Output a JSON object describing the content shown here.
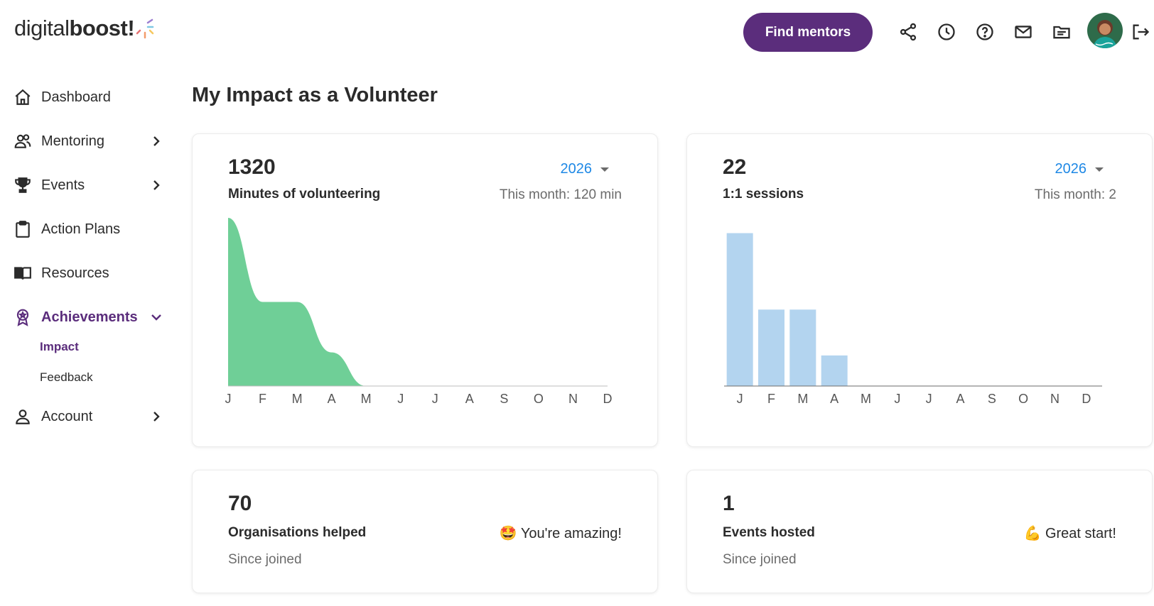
{
  "header": {
    "logo": {
      "part1": "digital",
      "part2": "boost",
      "mark": "!"
    },
    "find_mentors_label": "Find mentors",
    "icons": [
      "share-icon",
      "history-icon",
      "help-icon",
      "mail-icon",
      "documents-icon",
      "logout-icon"
    ]
  },
  "sidebar": {
    "items": [
      {
        "label": "Dashboard",
        "icon": "home-icon"
      },
      {
        "label": "Mentoring",
        "icon": "people-icon"
      },
      {
        "label": "Events",
        "icon": "trophy-icon"
      },
      {
        "label": "Action Plans",
        "icon": "clipboard-icon"
      },
      {
        "label": "Resources",
        "icon": "book-icon"
      },
      {
        "label": "Achievements",
        "icon": "badge-icon"
      },
      {
        "label": "Account",
        "icon": "user-icon"
      }
    ],
    "subitems": [
      {
        "label": "Impact"
      },
      {
        "label": "Feedback"
      }
    ]
  },
  "main": {
    "title": "My Impact as a Volunteer",
    "cards": {
      "minutes": {
        "value": "1320",
        "label": "Minutes of volunteering",
        "year": "2026",
        "this_month": "This month: 120 min"
      },
      "sessions": {
        "value": "22",
        "label": "1:1 sessions",
        "year": "2026",
        "this_month": "This month: 2"
      },
      "organisations": {
        "value": "70",
        "label": "Organisations helped",
        "since": "Since joined",
        "cheer": "🤩 You're amazing!"
      },
      "events": {
        "value": "1",
        "label": "Events hosted",
        "since": "Since joined",
        "cheer": "💪 Great start!"
      }
    }
  },
  "colors": {
    "brand_purple": "#5b2d7c",
    "link_blue": "#1e88e5",
    "area_green": "#6fcf97",
    "bar_blue": "#b3d4ef"
  },
  "chart_data": [
    {
      "type": "area",
      "categories": [
        "J",
        "F",
        "M",
        "A",
        "M",
        "J",
        "J",
        "A",
        "S",
        "O",
        "N",
        "D"
      ],
      "values": [
        600,
        300,
        300,
        120,
        0,
        0,
        0,
        0,
        0,
        0,
        0,
        0
      ],
      "title": "",
      "xlabel": "",
      "ylabel": "",
      "ylim": [
        0,
        600
      ],
      "grid": false
    },
    {
      "type": "bar",
      "categories": [
        "J",
        "F",
        "M",
        "A",
        "M",
        "J",
        "J",
        "A",
        "S",
        "O",
        "N",
        "D"
      ],
      "values": [
        10,
        5,
        5,
        2,
        0,
        0,
        0,
        0,
        0,
        0,
        0,
        0
      ],
      "title": "",
      "xlabel": "",
      "ylabel": "",
      "ylim": [
        0,
        11
      ],
      "grid": false
    }
  ]
}
